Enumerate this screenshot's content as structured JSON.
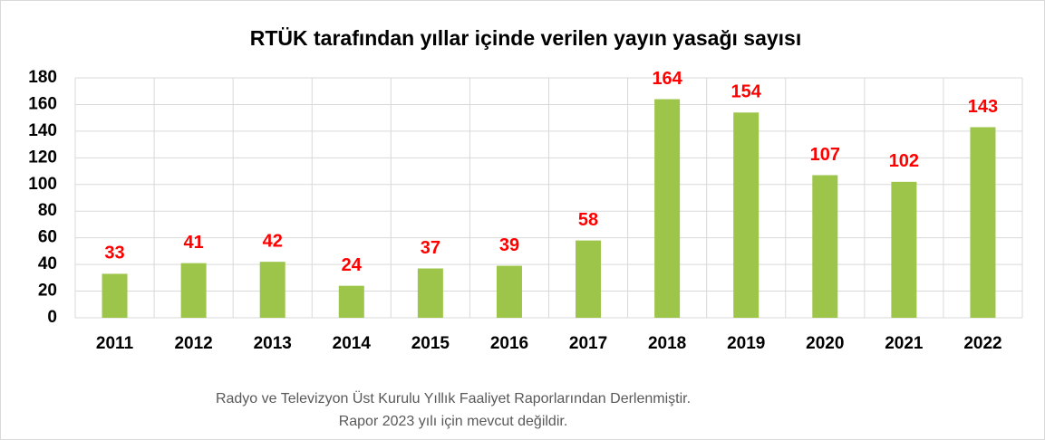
{
  "chart_data": {
    "type": "bar",
    "title": "RTÜK tarafından yıllar içinde verilen yayın yasağı sayısı",
    "categories": [
      "2011",
      "2012",
      "2013",
      "2014",
      "2015",
      "2016",
      "2017",
      "2018",
      "2019",
      "2020",
      "2021",
      "2022"
    ],
    "values": [
      33,
      41,
      42,
      24,
      37,
      39,
      58,
      164,
      154,
      107,
      102,
      143
    ],
    "color": "#9dc54a",
    "label_color": "#ff0000",
    "ylim": [
      0,
      180
    ],
    "yticks": [
      0,
      20,
      40,
      60,
      80,
      100,
      120,
      140,
      160,
      180
    ],
    "grid": true,
    "footnote": [
      "Radyo ve Televizyon Üst Kurulu Yıllık Faaliyet Raporlarından Derlenmiştir.",
      "Rapor 2023 yılı için mevcut değildir."
    ]
  }
}
